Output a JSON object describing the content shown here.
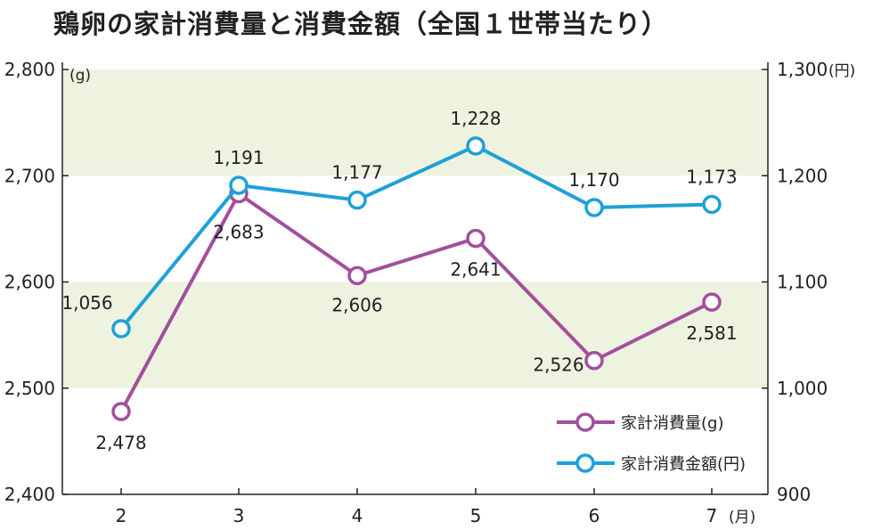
{
  "chart_data": {
    "type": "line",
    "title": "鶏卵の家計消費量と消費金額（全国１世帯当たり）",
    "x": [
      "2",
      "3",
      "4",
      "5",
      "6",
      "7"
    ],
    "xunit": "(月)",
    "y_left": {
      "unit": "(g)",
      "ylim": [
        2400,
        2800
      ],
      "ticks": [
        "2,400",
        "2,500",
        "2,600",
        "2,700",
        "2,800"
      ]
    },
    "y_right": {
      "unit": "(円)",
      "ylim": [
        900,
        1300
      ],
      "ticks": [
        "900",
        "1,000",
        "1,100",
        "1,200",
        "1,300"
      ]
    },
    "series": [
      {
        "name": "家計消費量(g)",
        "axis": "left",
        "color": "#a24f9c",
        "values": [
          2478,
          2683,
          2606,
          2641,
          2526,
          2581
        ],
        "labels": [
          "2,478",
          "2,683",
          "2,606",
          "2,641",
          "2,526",
          "2,581"
        ]
      },
      {
        "name": "家計消費金額(円)",
        "axis": "right",
        "color": "#1ea0d8",
        "values": [
          1056,
          1191,
          1177,
          1228,
          1170,
          1173
        ],
        "labels": [
          "1,056",
          "1,191",
          "1,177",
          "1,228",
          "1,170",
          "1,173"
        ]
      }
    ],
    "band_color": "#eef3e0",
    "grid": false,
    "legend_position": "bottom-right"
  }
}
